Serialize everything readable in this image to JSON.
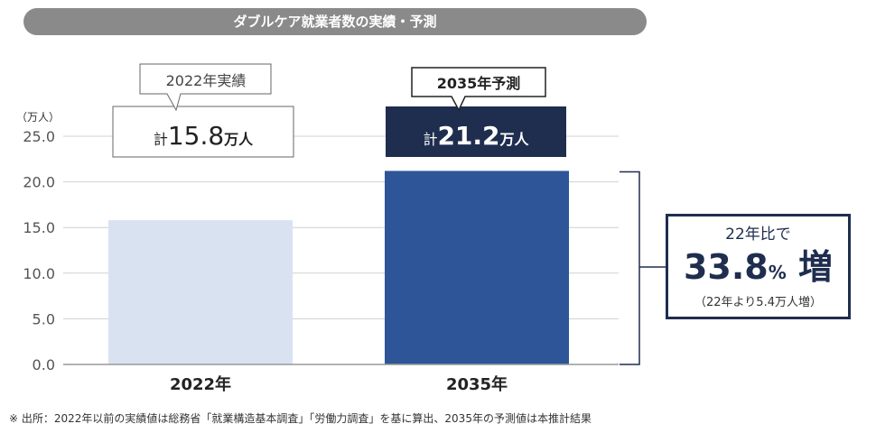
{
  "title": "ダブルケア就業者数の実績・予測",
  "chart_data": {
    "type": "bar",
    "unit_label": "（万人）",
    "categories": [
      "2022年",
      "2035年"
    ],
    "values": [
      15.8,
      21.2
    ],
    "ylim": [
      0,
      25
    ],
    "yticks": [
      "0.0",
      "5.0",
      "10.0",
      "15.0",
      "20.0",
      "25.0"
    ],
    "grid": true,
    "bar_colors": [
      "#d9e2f1",
      "#2e5597"
    ],
    "bar_callouts": [
      {
        "tag": "2022年実績",
        "prefix": "計",
        "value": "15.8",
        "unit": "万人"
      },
      {
        "tag": "2035年予測",
        "prefix": "計",
        "value": "21.2",
        "unit": "万人"
      }
    ]
  },
  "increase_callout": {
    "line1": "22年比で",
    "value": "33.8",
    "unit": "%",
    "suffix": " 増",
    "note": "（22年より5.4万人増）"
  },
  "footnote": "※ 出所：2022年以前の実績値は総務省「就業構造基本調査」「労働力調査」を基に算出、2035年の予測値は本推計結果",
  "colors": {
    "navy": "#1f2d4e",
    "bar_light": "#d9e2f1",
    "bar_dark": "#2e5597",
    "title_bg": "#8a8a8a"
  }
}
